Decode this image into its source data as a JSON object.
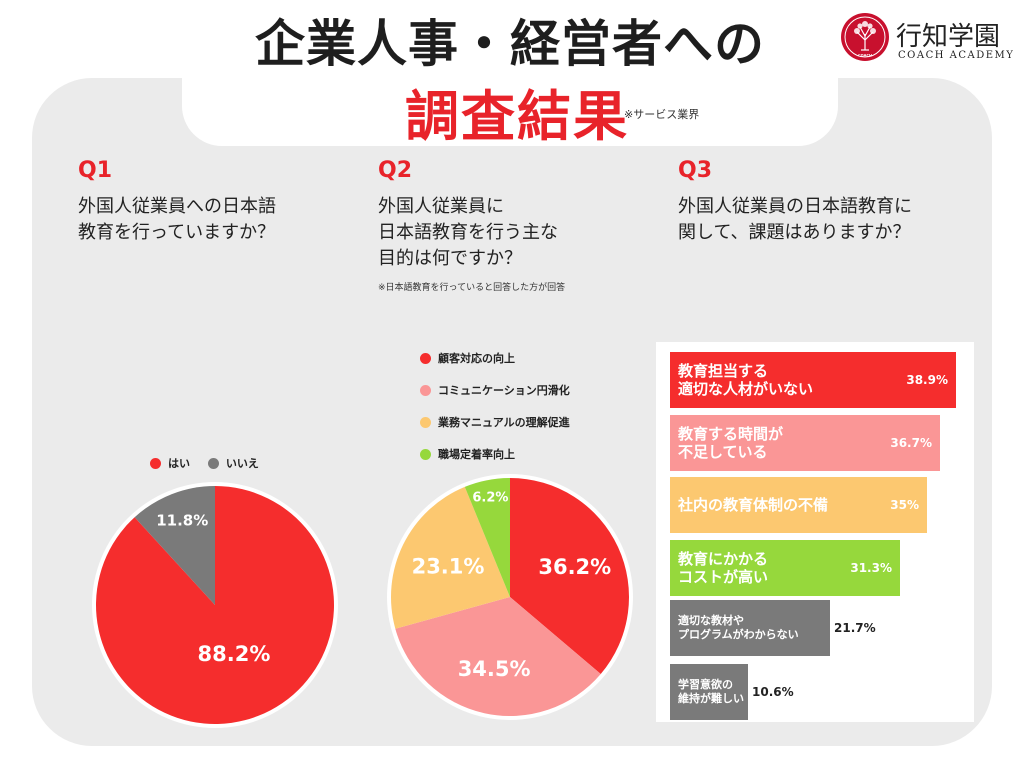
{
  "header": {
    "title_line1": "企業人事・経営者への",
    "title_line2": "調査結果",
    "note": "※サービス業界"
  },
  "logo": {
    "name": "行知学園",
    "sub": "COACH ACADEMY",
    "seal_text": "COACH"
  },
  "colors": {
    "red": "#f52d2d",
    "gray": "#7a7a7a",
    "pink": "#fa9696",
    "yellow": "#fcc870",
    "green": "#96d83c",
    "accent": "#e8232a"
  },
  "q1": {
    "num": "Q1",
    "text": "外国人従業員への日本語\n教育を行っていますか？"
  },
  "q2": {
    "num": "Q2",
    "text": "外国人従業員に\n日本語教育を行う主な\n目的は何ですか？",
    "note": "※日本語教育を行っていると回答した方が回答"
  },
  "q3": {
    "num": "Q3",
    "text": "外国人従業員の日本語教育に\n関して、課題はありますか？"
  },
  "chart_data": [
    {
      "type": "pie",
      "categories": [
        "はい",
        "いいえ"
      ],
      "values": [
        88.2,
        11.8
      ],
      "labels": [
        "88.2%",
        "11.8%"
      ],
      "colors": [
        "#f52d2d",
        "#7a7a7a"
      ],
      "legend": "top"
    },
    {
      "type": "pie",
      "categories": [
        "顧客対応の向上",
        "コミュニケーション円滑化",
        "業務マニュアルの理解促進",
        "職場定着率向上"
      ],
      "values": [
        36.2,
        34.5,
        23.1,
        6.2
      ],
      "labels": [
        "36.2%",
        "34.5%",
        "23.1%",
        "6.2%"
      ],
      "colors": [
        "#f52d2d",
        "#fa9696",
        "#fcc870",
        "#96d83c"
      ],
      "legend": "top"
    },
    {
      "type": "bar",
      "orientation": "horizontal",
      "categories": [
        "教育担当する\n適切な人材がいない",
        "教育する時間が\n不足している",
        "社内の教育体制の不備",
        "教育にかかる\nコストが高い",
        "適切な教材や\nプログラムがわからない",
        "学習意欲の\n維持が難しい"
      ],
      "values": [
        38.9,
        36.7,
        35,
        31.3,
        21.7,
        10.6
      ],
      "labels": [
        "38.9%",
        "36.7%",
        "35%",
        "31.3%",
        "21.7%",
        "10.6%"
      ],
      "colors": [
        "#f52d2d",
        "#fa9696",
        "#fcc870",
        "#96d83c",
        "#7a7a7a",
        "#7a7a7a"
      ]
    }
  ]
}
